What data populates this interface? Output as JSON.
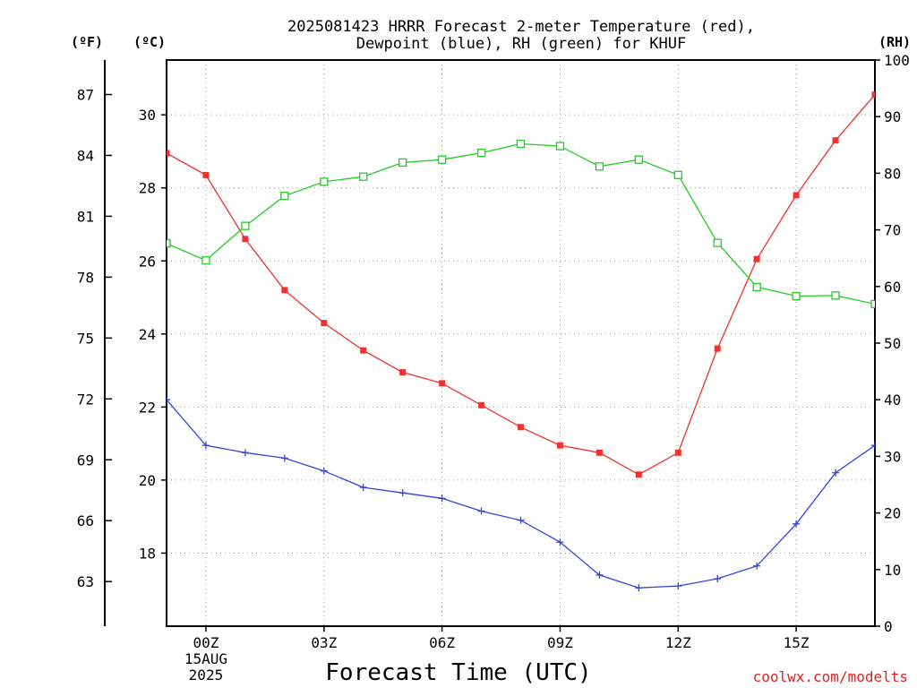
{
  "chart_data": {
    "type": "line",
    "title_line1": "2025081423 HRRR Forecast 2-meter Temperature (red),",
    "title_line2": "Dewpoint (blue), RH (green) for KHUF",
    "xlabel": "Forecast Time (UTC)",
    "unit_f": "(ºF)",
    "unit_c": "(ºC)",
    "unit_rh": "(RH)",
    "credit": "coolwx.com/modelts",
    "x_ticks": [
      {
        "x": 0,
        "label": "00Z",
        "sub1": "15AUG",
        "sub2": "2025"
      },
      {
        "x": 3,
        "label": "03Z",
        "sub1": "",
        "sub2": ""
      },
      {
        "x": 6,
        "label": "06Z",
        "sub1": "",
        "sub2": ""
      },
      {
        "x": 9,
        "label": "09Z",
        "sub1": "",
        "sub2": ""
      },
      {
        "x": 12,
        "label": "12Z",
        "sub1": "",
        "sub2": ""
      },
      {
        "x": 15,
        "label": "15Z",
        "sub1": "",
        "sub2": ""
      }
    ],
    "xlim": [
      -1,
      17
    ],
    "c_ticks": [
      "18",
      "20",
      "22",
      "24",
      "26",
      "28",
      "30"
    ],
    "c_lim": [
      16,
      31.5
    ],
    "f_ticks": [
      "63",
      "66",
      "69",
      "72",
      "75",
      "78",
      "81",
      "84",
      "87"
    ],
    "rh_ticks": [
      "0",
      "10",
      "20",
      "30",
      "40",
      "50",
      "60",
      "70",
      "80",
      "90",
      "100"
    ],
    "rh_lim": [
      0,
      100
    ],
    "grid": true,
    "colors": {
      "temperature": "#ee3333",
      "dewpoint": "#3344dd",
      "rh": "#22cc22",
      "credit": "#dd2222",
      "grid": "#999999"
    },
    "series": [
      {
        "name": "Temperature",
        "axis": "C",
        "x": [
          -1,
          0,
          1,
          2,
          3,
          4,
          5,
          6,
          7,
          8,
          9,
          10,
          11,
          12,
          13,
          14,
          15,
          16,
          17
        ],
        "values": [
          28.95,
          28.35,
          26.6,
          25.2,
          24.3,
          23.55,
          22.95,
          22.65,
          22.05,
          21.45,
          20.95,
          20.75,
          20.15,
          20.75,
          23.6,
          26.05,
          27.8,
          29.3,
          30.55
        ]
      },
      {
        "name": "Dewpoint",
        "axis": "C",
        "x": [
          -1,
          0,
          1,
          2,
          3,
          4,
          5,
          6,
          7,
          8,
          9,
          10,
          11,
          12,
          13,
          14,
          15,
          16,
          17
        ],
        "values": [
          22.2,
          20.95,
          20.75,
          20.6,
          20.25,
          19.8,
          19.65,
          19.5,
          19.15,
          18.9,
          18.3,
          17.4,
          17.05,
          17.1,
          17.3,
          17.65,
          18.8,
          20.2,
          20.95
        ]
      },
      {
        "name": "RH",
        "axis": "RH",
        "x": [
          -1,
          0,
          1,
          2,
          3,
          4,
          5,
          6,
          7,
          8,
          9,
          10,
          11,
          12,
          13,
          14,
          15,
          16,
          17
        ],
        "values": [
          67.6,
          64.6,
          70.7,
          76.0,
          78.5,
          79.4,
          81.9,
          82.4,
          83.6,
          85.2,
          84.8,
          81.2,
          82.4,
          79.7,
          67.7,
          59.9,
          58.3,
          58.4,
          56.9
        ]
      }
    ]
  }
}
